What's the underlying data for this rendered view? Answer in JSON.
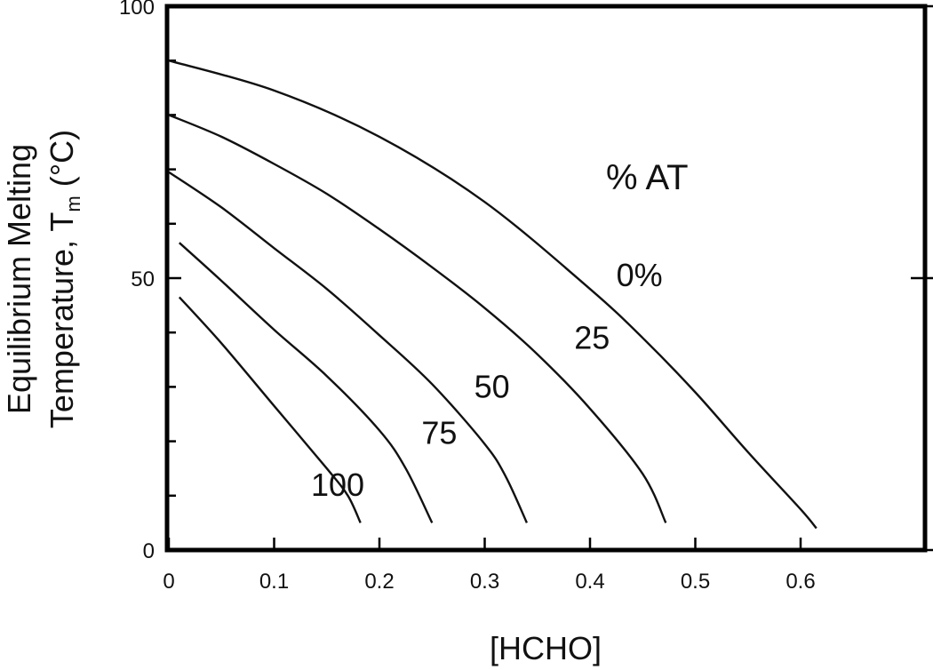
{
  "chart_data": {
    "type": "line",
    "xlabel": "[HCHO]",
    "ylabel_line1": "Equilibrium Melting",
    "ylabel_line2_prefix": "Temperature, T",
    "ylabel_subscript": "m",
    "ylabel_line2_suffix": " (°C)",
    "legend_title": "% AT",
    "xlim": [
      0,
      0.7
    ],
    "ylim": [
      0,
      100
    ],
    "x_ticks": [
      0,
      0.1,
      0.2,
      0.3,
      0.4,
      0.5,
      0.6
    ],
    "x_tick_labels": [
      "0",
      "0.1",
      "0.2",
      "0.3",
      "0.4",
      "0.5",
      "0.6"
    ],
    "y_ticks": [
      0,
      50,
      100
    ],
    "y_tick_labels": [
      "0",
      "50",
      "100"
    ],
    "y_minor_ticks": [
      10,
      20,
      30,
      40,
      60,
      70,
      80,
      90
    ],
    "grid": false,
    "series": [
      {
        "name": "0%",
        "x": [
          0,
          0.1,
          0.2,
          0.3,
          0.4,
          0.45,
          0.5,
          0.55,
          0.6,
          0.615
        ],
        "y": [
          90,
          84.5,
          76,
          64,
          48,
          39,
          29,
          18,
          7.5,
          4
        ]
      },
      {
        "name": "25",
        "x": [
          0,
          0.05,
          0.1,
          0.15,
          0.2,
          0.25,
          0.3,
          0.35,
          0.4,
          0.45,
          0.472
        ],
        "y": [
          80,
          76,
          71,
          65.5,
          59,
          52,
          44.5,
          36,
          26,
          14,
          5
        ]
      },
      {
        "name": "50",
        "x": [
          0,
          0.05,
          0.1,
          0.15,
          0.2,
          0.25,
          0.3,
          0.32,
          0.34
        ],
        "y": [
          69.5,
          63,
          55.5,
          48,
          39.5,
          30.5,
          19.5,
          13.5,
          5
        ]
      },
      {
        "name": "75",
        "x": [
          0.01,
          0.05,
          0.1,
          0.15,
          0.2,
          0.225,
          0.25
        ],
        "y": [
          56.5,
          49.5,
          40.5,
          32,
          22,
          15,
          5
        ]
      },
      {
        "name": "100",
        "x": [
          0.01,
          0.05,
          0.1,
          0.15,
          0.17,
          0.182
        ],
        "y": [
          46.5,
          38,
          26.5,
          15,
          10,
          5
        ]
      }
    ],
    "curve_label_positions": [
      {
        "x": 0.425,
        "y": 48.5
      },
      {
        "x": 0.385,
        "y": 37
      },
      {
        "x": 0.29,
        "y": 28
      },
      {
        "x": 0.24,
        "y": 19.5
      },
      {
        "x": 0.135,
        "y": 10
      }
    ]
  }
}
